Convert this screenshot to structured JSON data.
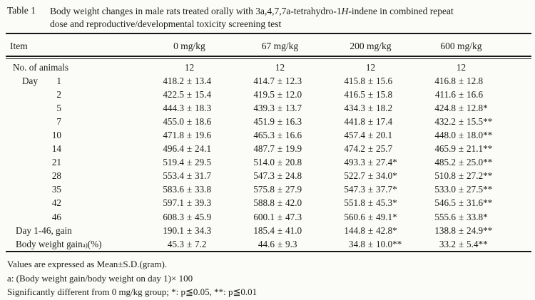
{
  "title": {
    "tag": "Table 1",
    "line1_pre": "Body weight changes in male rats treated orally with 3a,4,7,7a-tetrahydro-1",
    "line1_italic": "H",
    "line1_post": "-indene in combined repeat",
    "line2": "dose and reproductive/developmental toxicity screening test"
  },
  "table": {
    "columns": [
      "Item",
      "0 mg/kg",
      "67 mg/kg",
      "200 mg/kg",
      "600 mg/kg"
    ],
    "rows": [
      {
        "type": "count",
        "label": "No. of animals",
        "cells": [
          "12",
          "12",
          "12",
          "12"
        ]
      },
      {
        "type": "day",
        "day_prefix": "Day",
        "day": "1",
        "cells": [
          [
            "418.2",
            "13.4",
            ""
          ],
          [
            "414.7",
            "12.3",
            ""
          ],
          [
            "415.8",
            "15.6",
            ""
          ],
          [
            "416.8",
            "12.8",
            ""
          ]
        ]
      },
      {
        "type": "day",
        "day_prefix": "",
        "day": "2",
        "cells": [
          [
            "422.5",
            "15.4",
            ""
          ],
          [
            "419.5",
            "12.0",
            ""
          ],
          [
            "416.5",
            "15.8",
            ""
          ],
          [
            "411.6",
            "16.6",
            ""
          ]
        ]
      },
      {
        "type": "day",
        "day_prefix": "",
        "day": "5",
        "cells": [
          [
            "444.3",
            "18.3",
            ""
          ],
          [
            "439.3",
            "13.7",
            ""
          ],
          [
            "434.3",
            "18.2",
            ""
          ],
          [
            "424.8",
            "12.8",
            "*"
          ]
        ]
      },
      {
        "type": "day",
        "day_prefix": "",
        "day": "7",
        "cells": [
          [
            "455.0",
            "18.6",
            ""
          ],
          [
            "451.9",
            "16.3",
            ""
          ],
          [
            "441.8",
            "17.4",
            ""
          ],
          [
            "432.2",
            "15.5",
            "**"
          ]
        ]
      },
      {
        "type": "day",
        "day_prefix": "",
        "day": "10",
        "cells": [
          [
            "471.8",
            "19.6",
            ""
          ],
          [
            "465.3",
            "16.6",
            ""
          ],
          [
            "457.4",
            "20.1",
            ""
          ],
          [
            "448.0",
            "18.0",
            "**"
          ]
        ]
      },
      {
        "type": "day",
        "day_prefix": "",
        "day": "14",
        "cells": [
          [
            "496.4",
            "24.1",
            ""
          ],
          [
            "487.7",
            "19.9",
            ""
          ],
          [
            "474.2",
            "25.7",
            ""
          ],
          [
            "465.9",
            "21.1",
            "**"
          ]
        ]
      },
      {
        "type": "day",
        "day_prefix": "",
        "day": "21",
        "cells": [
          [
            "519.4",
            "29.5",
            ""
          ],
          [
            "514.0",
            "20.8",
            ""
          ],
          [
            "493.3",
            "27.4",
            "*"
          ],
          [
            "485.2",
            "25.0",
            "**"
          ]
        ]
      },
      {
        "type": "day",
        "day_prefix": "",
        "day": "28",
        "cells": [
          [
            "553.4",
            "31.7",
            ""
          ],
          [
            "547.3",
            "24.8",
            ""
          ],
          [
            "522.7",
            "34.0",
            "*"
          ],
          [
            "510.8",
            "27.2",
            "**"
          ]
        ]
      },
      {
        "type": "day",
        "day_prefix": "",
        "day": "35",
        "cells": [
          [
            "583.6",
            "33.8",
            ""
          ],
          [
            "575.8",
            "27.9",
            ""
          ],
          [
            "547.3",
            "37.7",
            "*"
          ],
          [
            "533.0",
            "27.5",
            "**"
          ]
        ]
      },
      {
        "type": "day",
        "day_prefix": "",
        "day": "42",
        "cells": [
          [
            "597.1",
            "39.3",
            ""
          ],
          [
            "588.8",
            "42.0",
            ""
          ],
          [
            "551.8",
            "45.3",
            "*"
          ],
          [
            "546.5",
            "31.6",
            "**"
          ]
        ]
      },
      {
        "type": "day",
        "day_prefix": "",
        "day": "46",
        "cells": [
          [
            "608.3",
            "45.9",
            ""
          ],
          [
            "600.1",
            "47.3",
            ""
          ],
          [
            "560.6",
            "49.1",
            "*"
          ],
          [
            "555.6",
            "33.8",
            "*"
          ]
        ]
      },
      {
        "type": "label",
        "label": "Day 1-46, gain",
        "cells": [
          [
            "190.1",
            "34.3",
            ""
          ],
          [
            "185.4",
            "41.0",
            ""
          ],
          [
            "144.8",
            "42.8",
            "*"
          ],
          [
            "138.8",
            "24.9",
            "**"
          ]
        ]
      },
      {
        "type": "label",
        "label": "Body weight gain",
        "label_sup": "a)",
        "label_suffix": "(%)",
        "cells": [
          [
            "45.3",
            "7.2",
            ""
          ],
          [
            "44.6",
            "9.3",
            ""
          ],
          [
            "34.8",
            "10.0",
            "**"
          ],
          [
            "33.2",
            "5.4",
            "**"
          ]
        ]
      }
    ]
  },
  "footnotes": [
    "Values are expressed as Mean±S.D.(gram).",
    "a: (Body weight gain/body weight on day 1)× 100",
    "Significantly different from 0 mg/kg group; *: p≦0.05, **: p≦0.01"
  ]
}
